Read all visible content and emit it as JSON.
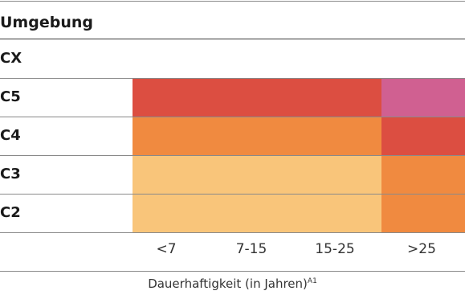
{
  "chart_data": {
    "type": "heatmap",
    "title": "Umgebung",
    "xlabel": "Dauerhaftigkeit (in Jahren)",
    "xlabel_superscript": "A1",
    "categories": [
      "<7",
      "7-15",
      "15-25",
      ">25"
    ],
    "rows": [
      {
        "label": "CX",
        "cells": [
          null,
          null,
          null,
          null
        ]
      },
      {
        "label": "C5",
        "cells": [
          "#dc4e41",
          "#dc4e41",
          "#dc4e41",
          "#d06091"
        ]
      },
      {
        "label": "C4",
        "cells": [
          "#f08a40",
          "#f08a40",
          "#f08a40",
          "#dc4e41"
        ]
      },
      {
        "label": "C3",
        "cells": [
          "#f9c57a",
          "#f9c57a",
          "#f9c57a",
          "#f08a40"
        ]
      },
      {
        "label": "C2",
        "cells": [
          "#f9c57a",
          "#f9c57a",
          "#f9c57a",
          "#f08a40"
        ]
      }
    ],
    "grid": true,
    "legend": "none"
  }
}
